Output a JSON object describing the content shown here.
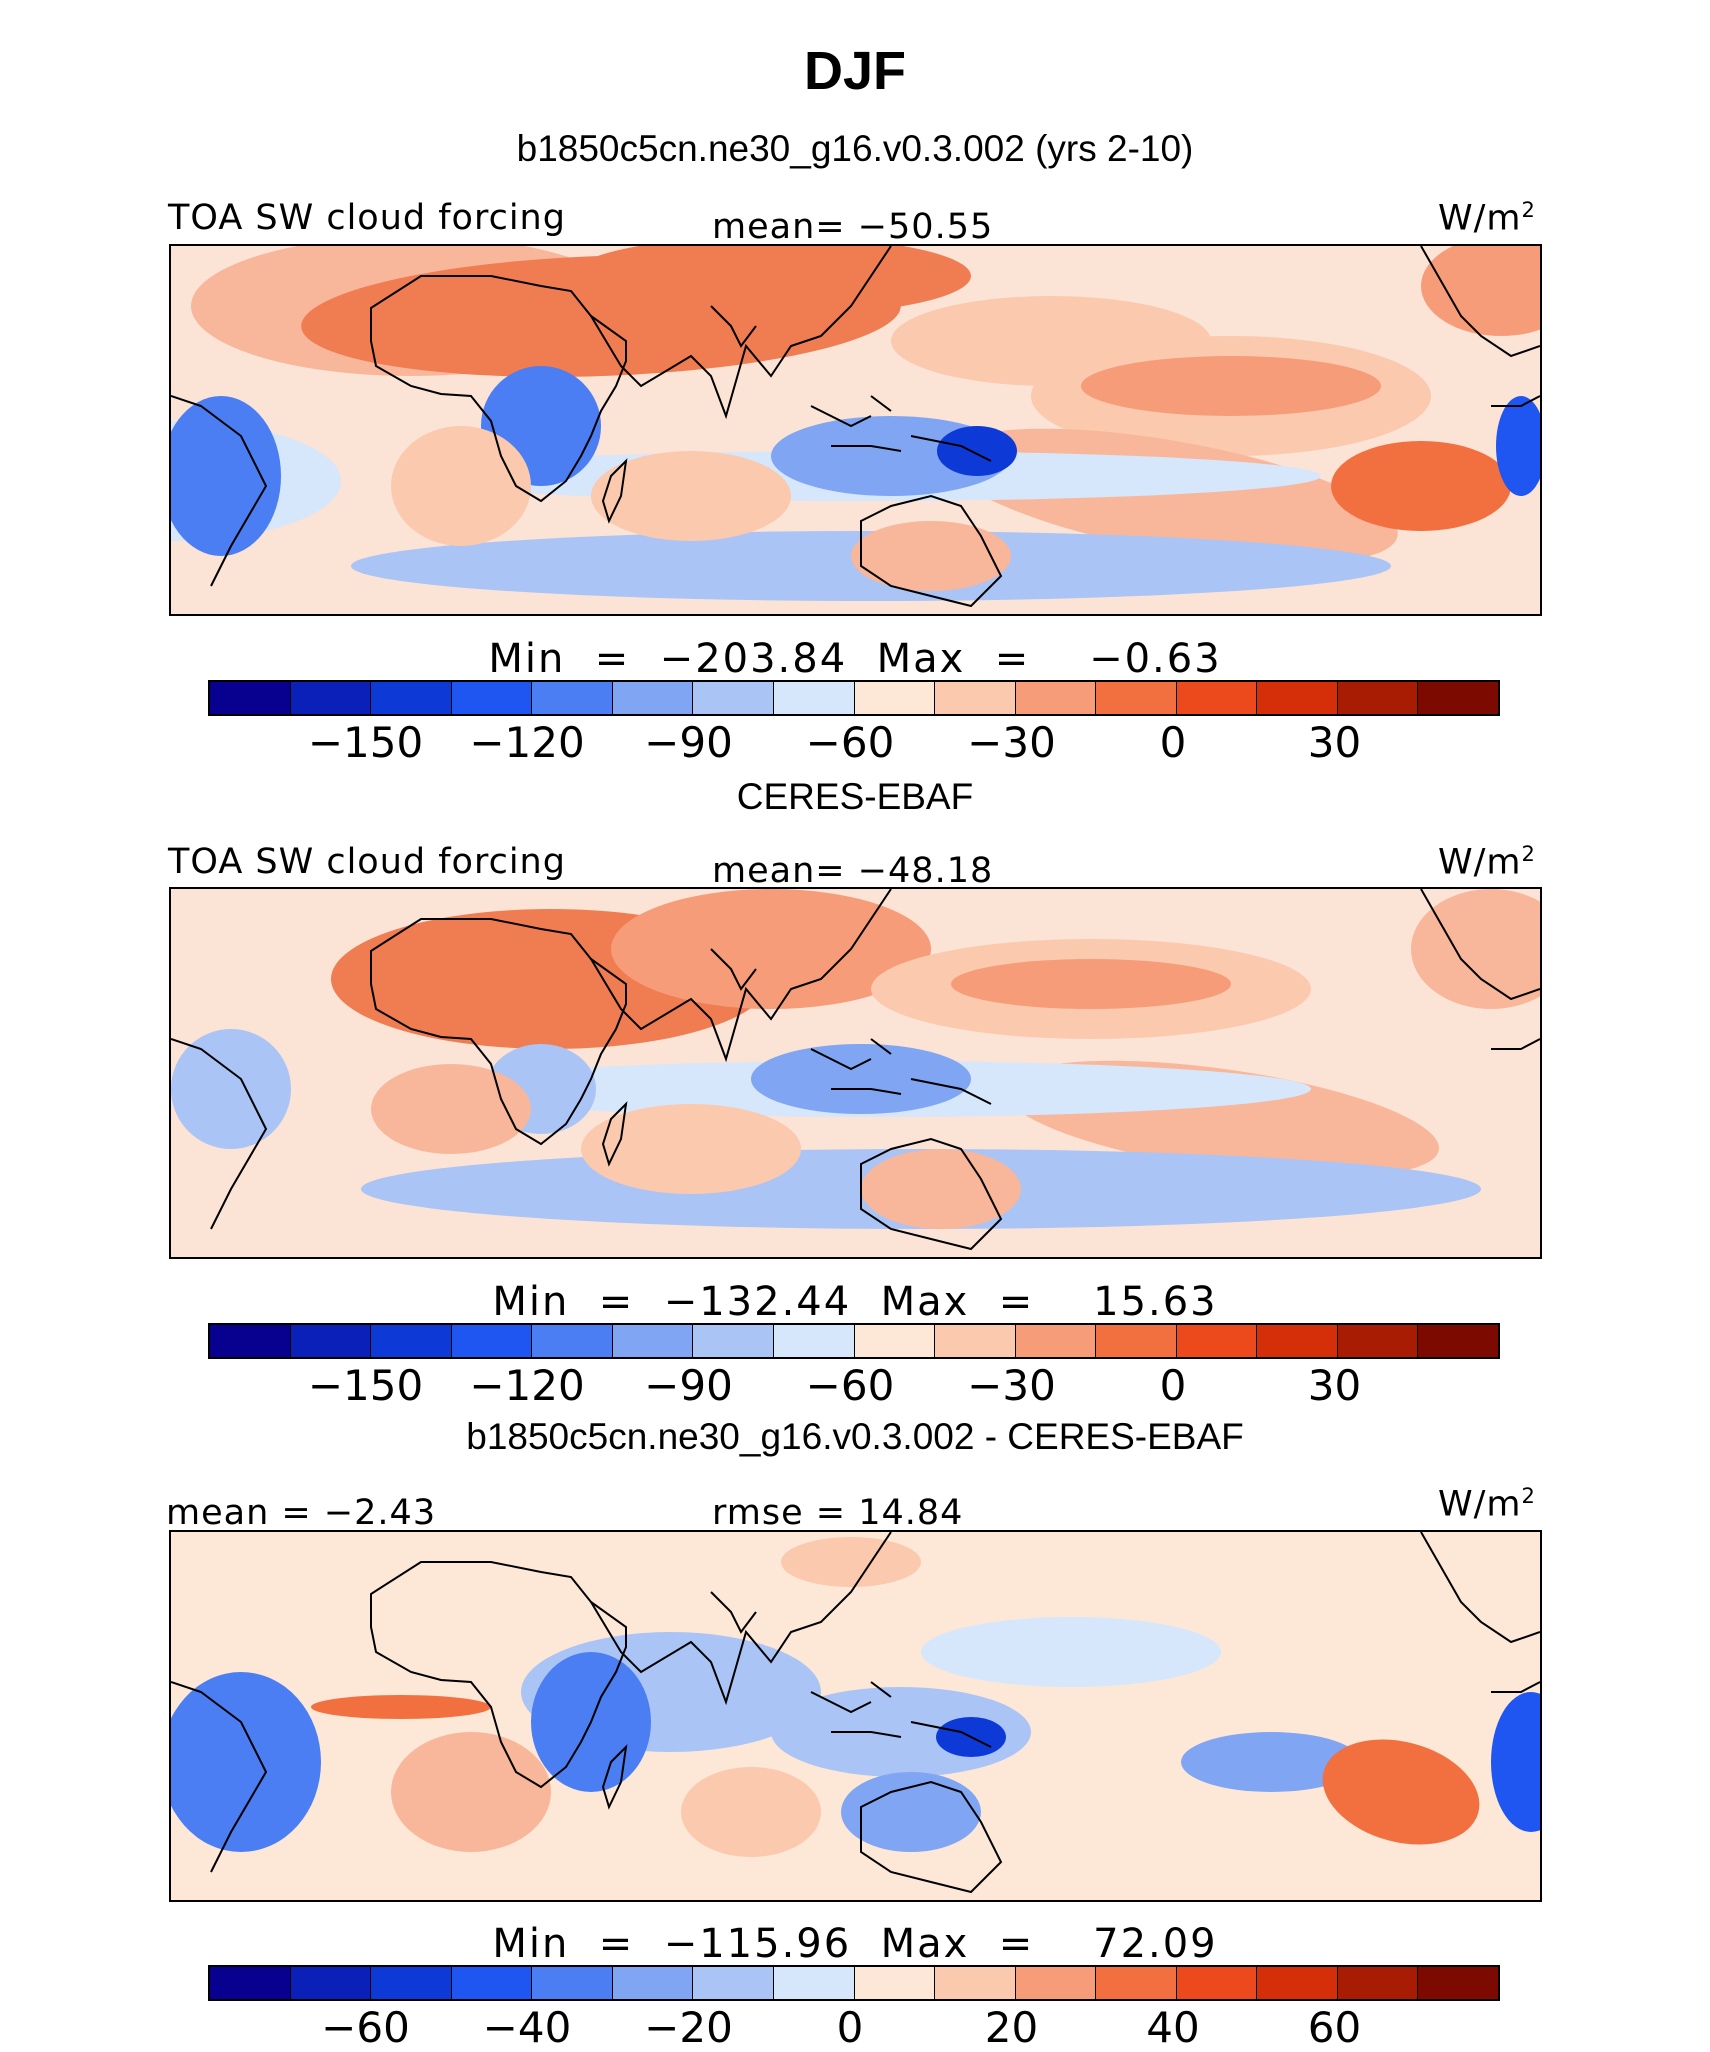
{
  "figure": {
    "title": "DJF"
  },
  "colors": {
    "colorbar": [
      "#08008f",
      "#0a20b8",
      "#0d3ad6",
      "#1f55f0",
      "#4a7ef2",
      "#7fa5f3",
      "#aac4f6",
      "#d6e6fb",
      "#fde8d8",
      "#fbc9ad",
      "#f69c78",
      "#f2703f",
      "#ec4a1c",
      "#d52f0a",
      "#a91c04",
      "#7d0a00"
    ]
  },
  "panels": [
    {
      "title": "b1850c5cn.ne30_g16.v0.3.002 (yrs 2-10)",
      "left_label": "TOA SW cloud forcing",
      "center_label": "mean=  −50.55",
      "units": "W/m",
      "units_sup": "2",
      "minmax": "Min  =  −203.84  Max  =    −0.63",
      "colorbar_ticks": [
        "−150",
        "−120",
        "−90",
        "−60",
        "−30",
        "0",
        "30"
      ],
      "pattern": "model"
    },
    {
      "title": "CERES-EBAF",
      "left_label": "TOA SW cloud forcing",
      "center_label": "mean=  −48.18",
      "units": "W/m",
      "units_sup": "2",
      "minmax": "Min  =  −132.44  Max  =    15.63",
      "colorbar_ticks": [
        "−150",
        "−120",
        "−90",
        "−60",
        "−30",
        "0",
        "30"
      ],
      "pattern": "obs"
    },
    {
      "title": "b1850c5cn.ne30_g16.v0.3.002 - CERES-EBAF",
      "left_label": "mean  =   −2.43",
      "center_label": "rmse  =   14.84",
      "units": "W/m",
      "units_sup": "2",
      "minmax": "Min  =  −115.96  Max  =    72.09",
      "colorbar_ticks": [
        "−60",
        "−40",
        "−20",
        "0",
        "20",
        "40",
        "60"
      ],
      "pattern": "diff"
    }
  ]
}
